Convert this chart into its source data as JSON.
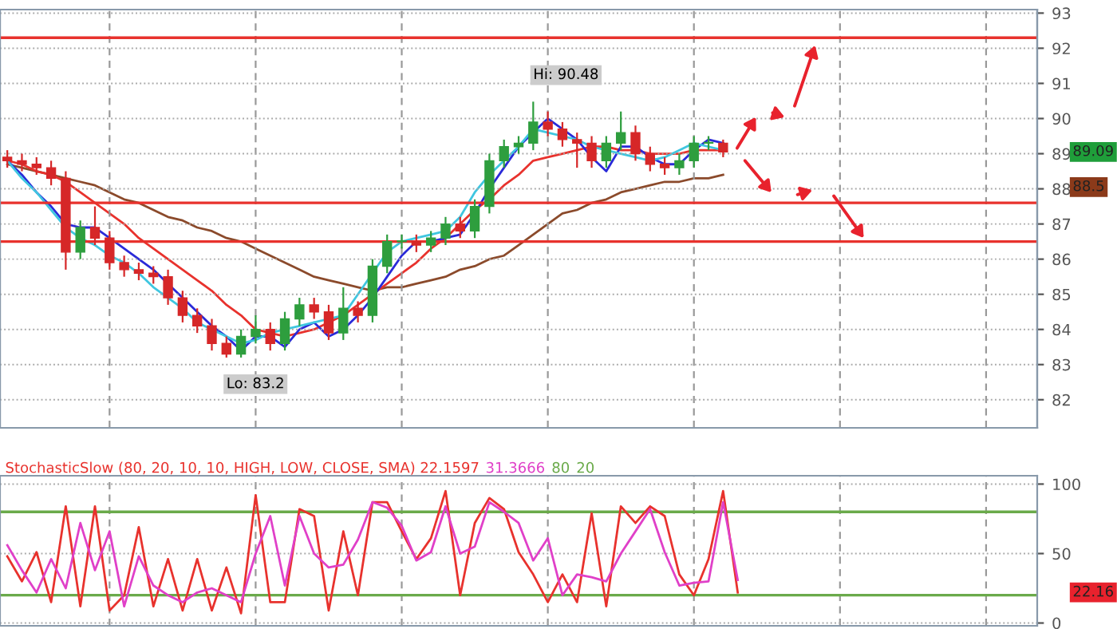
{
  "chart_data": [
    {
      "type": "candlestick",
      "tick_labels": "y",
      "grid": true,
      "categories": [
        null,
        null,
        null,
        null,
        null,
        null,
        null,
        null,
        null,
        null,
        null,
        null,
        null,
        null,
        null,
        null,
        null,
        null,
        null,
        null,
        null,
        null,
        null,
        null,
        null,
        null,
        null,
        null,
        null,
        null,
        null,
        null,
        null,
        null,
        null,
        null,
        null,
        null,
        null,
        null,
        null,
        null,
        null,
        null,
        null,
        null,
        null,
        null,
        null,
        null,
        null,
        null,
        null,
        null,
        null,
        null,
        null,
        null,
        null,
        null,
        null,
        null,
        null,
        null,
        null,
        null,
        null,
        null,
        null,
        null,
        null
      ],
      "ohlc": [
        [
          88.9,
          89.1,
          88.6,
          88.8
        ],
        [
          88.8,
          89.0,
          88.5,
          88.7
        ],
        [
          88.7,
          88.9,
          88.4,
          88.6
        ],
        [
          88.6,
          88.8,
          88.1,
          88.3
        ],
        [
          88.3,
          88.5,
          85.7,
          86.2
        ],
        [
          86.2,
          87.1,
          86.0,
          86.9
        ],
        [
          86.9,
          87.5,
          86.4,
          86.6
        ],
        [
          86.6,
          86.8,
          85.7,
          85.9
        ],
        [
          85.9,
          86.1,
          85.5,
          85.7
        ],
        [
          85.7,
          85.9,
          85.4,
          85.6
        ],
        [
          85.6,
          85.8,
          85.3,
          85.5
        ],
        [
          85.5,
          85.7,
          84.7,
          84.9
        ],
        [
          84.9,
          85.1,
          84.2,
          84.4
        ],
        [
          84.4,
          84.6,
          83.9,
          84.1
        ],
        [
          84.1,
          84.3,
          83.4,
          83.6
        ],
        [
          83.6,
          83.8,
          83.2,
          83.3
        ],
        [
          83.3,
          84.0,
          83.2,
          83.8
        ],
        [
          83.8,
          84.4,
          83.6,
          84.0
        ],
        [
          84.0,
          84.2,
          83.4,
          83.6
        ],
        [
          83.6,
          84.5,
          83.4,
          84.3
        ],
        [
          84.3,
          84.9,
          84.1,
          84.7
        ],
        [
          84.7,
          84.9,
          84.3,
          84.5
        ],
        [
          84.5,
          84.7,
          83.7,
          83.9
        ],
        [
          83.9,
          85.2,
          83.7,
          84.6
        ],
        [
          84.6,
          84.8,
          84.2,
          84.4
        ],
        [
          84.4,
          86.0,
          84.2,
          85.8
        ],
        [
          85.8,
          86.7,
          85.6,
          86.5
        ],
        [
          86.5,
          86.7,
          86.3,
          86.5
        ],
        [
          86.5,
          86.7,
          86.2,
          86.4
        ],
        [
          86.4,
          86.8,
          86.2,
          86.6
        ],
        [
          86.6,
          87.2,
          86.4,
          87.0
        ],
        [
          87.0,
          87.2,
          86.6,
          86.8
        ],
        [
          86.8,
          87.7,
          86.6,
          87.5
        ],
        [
          87.5,
          89.0,
          87.3,
          88.8
        ],
        [
          88.8,
          89.4,
          88.6,
          89.2
        ],
        [
          89.2,
          89.5,
          89.0,
          89.3
        ],
        [
          89.3,
          90.48,
          89.1,
          89.9
        ],
        [
          89.9,
          90.2,
          89.5,
          89.7
        ],
        [
          89.7,
          89.9,
          89.2,
          89.4
        ],
        [
          89.4,
          89.6,
          88.6,
          89.3
        ],
        [
          89.3,
          89.5,
          88.6,
          88.8
        ],
        [
          88.8,
          89.5,
          88.6,
          89.3
        ],
        [
          89.3,
          90.2,
          89.1,
          89.6
        ],
        [
          89.6,
          89.8,
          88.8,
          89.0
        ],
        [
          89.0,
          89.2,
          88.5,
          88.7
        ],
        [
          88.7,
          88.9,
          88.4,
          88.6
        ],
        [
          88.6,
          89.0,
          88.4,
          88.8
        ],
        [
          88.8,
          89.5,
          88.6,
          89.3
        ],
        [
          89.3,
          89.5,
          89.1,
          89.3
        ],
        [
          89.3,
          89.4,
          88.9,
          89.05
        ],
        null,
        null,
        null,
        null,
        null,
        null,
        null,
        null,
        null,
        null,
        null,
        null,
        null,
        null,
        null,
        null,
        null,
        null,
        null,
        null,
        null
      ],
      "ylim": [
        81.2,
        93.1
      ],
      "yticks": [
        82,
        83,
        84,
        85,
        86,
        87,
        88,
        89,
        90,
        91,
        92,
        93
      ],
      "ref_lines": [
        {
          "axis": "y",
          "value": 92.3,
          "color": "#e8322d"
        },
        {
          "axis": "y",
          "value": 87.6,
          "color": "#e8322d"
        },
        {
          "axis": "y",
          "value": 86.5,
          "color": "#e8322d"
        }
      ],
      "annotations": [
        "Hi: 90.48",
        "Lo: 83.2",
        "89.09",
        "88.5"
      ]
    },
    {
      "type": "line",
      "tick_labels": false,
      "categories": [
        null,
        null,
        null,
        null,
        null,
        null,
        null,
        null,
        null,
        null,
        null,
        null,
        null,
        null,
        null,
        null,
        null,
        null,
        null,
        null,
        null,
        null,
        null,
        null,
        null,
        null,
        null,
        null,
        null,
        null,
        null,
        null,
        null,
        null,
        null,
        null,
        null,
        null,
        null,
        null,
        null,
        null,
        null,
        null,
        null,
        null,
        null,
        null,
        null,
        null,
        null,
        null,
        null,
        null,
        null,
        null,
        null,
        null,
        null,
        null,
        null,
        null,
        null,
        null,
        null,
        null,
        null,
        null,
        null,
        null,
        null
      ],
      "ylim": [
        81.2,
        93.1
      ],
      "series": [
        {
          "color": "#8b4a2b",
          "values": [
            88.7,
            88.6,
            88.5,
            88.4,
            88.3,
            88.2,
            88.1,
            87.9,
            87.7,
            87.6,
            87.4,
            87.2,
            87.1,
            86.9,
            86.8,
            86.6,
            86.5,
            86.3,
            86.1,
            85.9,
            85.7,
            85.5,
            85.4,
            85.3,
            85.2,
            85.1,
            85.2,
            85.2,
            85.3,
            85.4,
            85.5,
            85.7,
            85.8,
            86.0,
            86.1,
            86.4,
            86.7,
            87.0,
            87.3,
            87.4,
            87.6,
            87.7,
            87.9,
            88.0,
            88.1,
            88.2,
            88.2,
            88.3,
            88.3,
            88.4,
            null,
            null,
            null,
            null,
            null,
            null,
            null,
            null,
            null,
            null,
            null,
            null,
            null,
            null,
            null,
            null,
            null,
            null,
            null,
            null,
            null
          ]
        },
        {
          "color": "#e8322d",
          "values": [
            88.8,
            88.7,
            88.5,
            88.4,
            88.2,
            87.9,
            87.6,
            87.3,
            87.0,
            86.6,
            86.3,
            86.0,
            85.7,
            85.4,
            85.1,
            84.7,
            84.4,
            84.0,
            83.9,
            83.8,
            83.9,
            84.0,
            84.2,
            84.4,
            84.7,
            85.0,
            85.3,
            85.6,
            85.9,
            86.3,
            86.6,
            87.0,
            87.4,
            87.7,
            88.1,
            88.4,
            88.8,
            88.9,
            89.0,
            89.1,
            89.2,
            89.2,
            89.1,
            89.1,
            89.0,
            89.0,
            89.0,
            89.1,
            89.1,
            89.1,
            null,
            null,
            null,
            null,
            null,
            null,
            null,
            null,
            null,
            null,
            null,
            null,
            null,
            null,
            null,
            null,
            null,
            null,
            null,
            null,
            null
          ]
        },
        {
          "color": "#2a2ad8",
          "values": [
            88.8,
            88.4,
            87.9,
            87.5,
            87.0,
            86.9,
            86.9,
            86.6,
            86.3,
            86.0,
            85.7,
            85.3,
            84.9,
            84.5,
            84.1,
            83.8,
            83.4,
            83.8,
            83.8,
            83.5,
            84.0,
            84.2,
            83.8,
            84.0,
            84.4,
            84.9,
            85.5,
            86.1,
            86.5,
            86.5,
            86.6,
            86.7,
            87.3,
            88.0,
            88.6,
            89.2,
            89.6,
            90.0,
            89.7,
            89.4,
            88.9,
            88.5,
            89.2,
            89.2,
            88.9,
            88.7,
            88.7,
            89.1,
            89.4,
            89.3,
            null,
            null,
            null,
            null,
            null,
            null,
            null,
            null,
            null,
            null,
            null,
            null,
            null,
            null,
            null,
            null,
            null,
            null,
            null,
            null,
            null
          ]
        },
        {
          "color": "#3fc6e0",
          "values": [
            88.8,
            88.3,
            87.9,
            87.4,
            86.9,
            86.6,
            86.4,
            86.1,
            85.9,
            85.6,
            85.2,
            84.9,
            84.6,
            84.2,
            84.0,
            83.8,
            83.6,
            83.7,
            83.9,
            84.0,
            84.1,
            84.2,
            84.3,
            84.4,
            85.0,
            85.6,
            86.2,
            86.5,
            86.6,
            86.7,
            86.8,
            87.2,
            87.9,
            88.4,
            88.8,
            89.2,
            89.7,
            89.6,
            89.5,
            89.4,
            89.2,
            89.1,
            89.0,
            88.9,
            88.8,
            88.9,
            89.1,
            89.3,
            89.2,
            89.1,
            null,
            null,
            null,
            null,
            null,
            null,
            null,
            null,
            null,
            null,
            null,
            null,
            null,
            null,
            null,
            null,
            null,
            null,
            null,
            null,
            null
          ]
        }
      ]
    },
    {
      "type": "line",
      "title": "StochasticSlow (80, 20, 10, 10, HIGH, LOW, CLOSE, SMA)",
      "tick_labels": "y",
      "grid": true,
      "categories": [
        null,
        null,
        null,
        null,
        null,
        null,
        null,
        null,
        null,
        null,
        null,
        null,
        null,
        null,
        null,
        null,
        null,
        null,
        null,
        null,
        null,
        null,
        null,
        null,
        null,
        null,
        null,
        null,
        null,
        null,
        null,
        null,
        null,
        null,
        null,
        null,
        null,
        null,
        null,
        null,
        null,
        null,
        null,
        null,
        null,
        null,
        null,
        null,
        null,
        null,
        null,
        null,
        null,
        null,
        null,
        null,
        null,
        null,
        null,
        null,
        null,
        null,
        null,
        null,
        null,
        null,
        null,
        null,
        null,
        null,
        null
      ],
      "series": [
        {
          "color": "#e8322d",
          "values": [
            48,
            30,
            51,
            15,
            84,
            12,
            84,
            9,
            20,
            69,
            12,
            46,
            9,
            46,
            9,
            40,
            7,
            92,
            15,
            15,
            82,
            77,
            9,
            66,
            20,
            87,
            87,
            66,
            46,
            61,
            95,
            20,
            72,
            90,
            82,
            51,
            35,
            15,
            35,
            15,
            79,
            12,
            84,
            72,
            84,
            77,
            35,
            20,
            46,
            95,
            22,
            null,
            null,
            null,
            null,
            null,
            null,
            null,
            null,
            null,
            null,
            null,
            null,
            null,
            null,
            null,
            null,
            null,
            null,
            null,
            null
          ]
        },
        {
          "color": "#e040c8",
          "values": [
            56,
            38,
            22,
            46,
            25,
            72,
            38,
            66,
            12,
            48,
            27,
            20,
            15,
            22,
            25,
            20,
            15,
            50,
            77,
            27,
            77,
            50,
            40,
            42,
            60,
            87,
            83,
            70,
            45,
            51,
            84,
            50,
            55,
            87,
            80,
            72,
            45,
            61,
            20,
            35,
            33,
            30,
            50,
            66,
            82,
            51,
            27,
            29,
            30,
            87,
            31,
            null,
            null,
            null,
            null,
            null,
            null,
            null,
            null,
            null,
            null,
            null,
            null,
            null,
            null,
            null,
            null,
            null,
            null,
            null,
            null
          ]
        }
      ],
      "ylim": [
        -2,
        106
      ],
      "yticks": [
        0,
        50,
        100
      ],
      "ref_lines": [
        {
          "axis": "y",
          "value": 80,
          "color": "#6aaa4a"
        },
        {
          "axis": "y",
          "value": 20,
          "color": "#6aaa4a"
        }
      ],
      "annotations": [
        "22.1597",
        "31.3666",
        "80",
        "20",
        "22.16"
      ]
    }
  ]
}
